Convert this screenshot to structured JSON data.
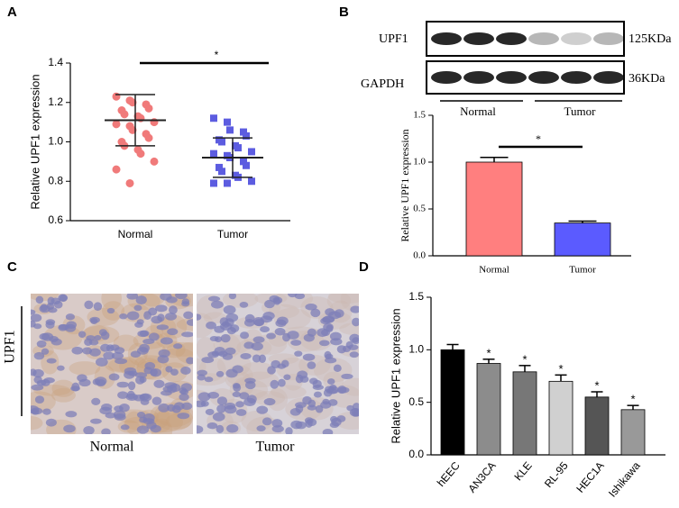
{
  "panels": {
    "a": "A",
    "b": "B",
    "c": "C",
    "d": "D"
  },
  "chart_data": [
    {
      "type": "dot",
      "y_label": "Relative UPF1 expression",
      "categories": [
        "Normal",
        "Tumor"
      ],
      "groups": [
        {
          "color": "#f07a7a",
          "marker": "circle",
          "mean": 1.11,
          "sd": 0.13,
          "values": [
            1.23,
            1.21,
            1.2,
            1.19,
            1.17,
            1.16,
            1.14,
            1.13,
            1.12,
            1.1,
            1.09,
            1.08,
            1.06,
            1.04,
            1.02,
            1.0,
            0.98,
            0.96,
            0.94,
            0.9,
            0.86,
            0.79
          ]
        },
        {
          "color": "#5c5ce0",
          "marker": "square",
          "mean": 0.92,
          "sd": 0.1,
          "values": [
            1.12,
            1.1,
            1.06,
            1.05,
            1.03,
            1.01,
            1.0,
            0.98,
            0.97,
            0.95,
            0.94,
            0.93,
            0.92,
            0.9,
            0.88,
            0.87,
            0.85,
            0.83,
            0.82,
            0.8,
            0.79,
            0.79
          ]
        }
      ],
      "ylim": [
        0.6,
        1.4
      ],
      "yticks": [
        0.6,
        0.8,
        {
          "value": 1,
          "label": "1.0"
        },
        1.2,
        1.4
      ],
      "annotation": "*"
    },
    {
      "type": "bar",
      "y_label": "Relative UPF1 expression",
      "categories": [
        "Normal",
        "Tumor"
      ],
      "values": [
        1.0,
        0.35
      ],
      "errors": [
        0.05,
        0.02
      ],
      "colors": [
        "#ff7f7f",
        "#5b5bff"
      ],
      "ylim": [
        0,
        1.5
      ],
      "yticks": [
        {
          "value": 0,
          "label": "0.0"
        },
        0.5,
        {
          "value": 1,
          "label": "1.0"
        },
        1.5
      ],
      "annotation": "*"
    },
    {
      "type": "bar",
      "y_label": "Relative UPF1 expression",
      "categories": [
        "hEEC",
        "AN3CA",
        "KLE",
        "RL-95",
        "HEC1A",
        "Ishikawa"
      ],
      "values": [
        1.0,
        0.87,
        0.79,
        0.7,
        0.55,
        0.43
      ],
      "errors": [
        0.05,
        0.04,
        0.06,
        0.06,
        0.05,
        0.04
      ],
      "colors": [
        "#000000",
        "#8c8c8c",
        "#777777",
        "#d0d0d0",
        "#555555",
        "#999999"
      ],
      "annotations": [
        null,
        "*",
        "*",
        "*",
        "*",
        "*"
      ],
      "ylim": [
        0,
        1.5
      ],
      "yticks": [
        {
          "value": 0,
          "label": "0.0"
        },
        0.5,
        {
          "value": 1,
          "label": "1.0"
        },
        1.5
      ]
    }
  ],
  "blot": {
    "rows": [
      {
        "label": "UPF1",
        "size": "125KDa"
      },
      {
        "label": "GAPDH",
        "size": "36KDa"
      }
    ],
    "groups": [
      "Normal",
      "Tumor"
    ]
  },
  "ihc": {
    "stain": "UPF1",
    "images": [
      "Normal",
      "Tumor"
    ]
  }
}
